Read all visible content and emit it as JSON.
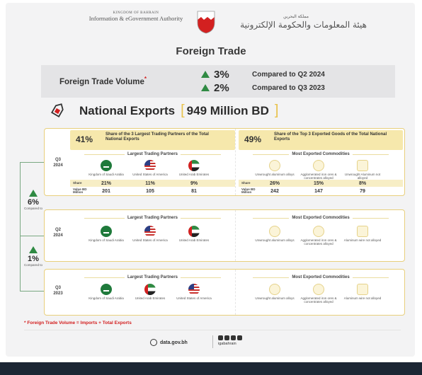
{
  "header": {
    "kingdom": "KINGDOM OF BAHRAIN",
    "authority_en": "Information & eGovernment Authority",
    "authority_ar_small": "مملكة البحرين",
    "authority_ar": "هيئة المعلومات والحكومة الإلكترونية"
  },
  "title": "Foreign Trade",
  "volume": {
    "label": "Foreign Trade Volume",
    "star": "*",
    "rows": [
      {
        "pct": "3%",
        "text": "Compared to Q2 2024"
      },
      {
        "pct": "2%",
        "text": "Compared to Q3 2023"
      }
    ]
  },
  "national": {
    "label": "National Exports",
    "value": "949 Million BD"
  },
  "blocks": [
    {
      "period_top": "Q3",
      "period_bottom": "2024",
      "left_share": "41%",
      "left_desc": "Share of the 3 Largest Trading Partners of the Total National Exports",
      "right_share": "49%",
      "right_desc": "Share of the Top 3 Exported Goods of the Total National Exports",
      "partners_title": "Largest Trading Partners",
      "partners": [
        "Kingdom of Saudi Arabia",
        "United States of America",
        "United Arab Emirates"
      ],
      "commodities_title": "Most Exported Commodities",
      "commodities": [
        "Unwrought aluminum alloys",
        "Agglomerated iron ores & concentrates alloyed",
        "Unwrought Aluminum not alloyed"
      ],
      "share_label": "Share",
      "value_label": "Value BD Million",
      "partner_share": [
        "21%",
        "11%",
        "9%"
      ],
      "partner_value": [
        "201",
        "105",
        "81"
      ],
      "commodity_share": [
        "26%",
        "15%",
        "8%"
      ],
      "commodity_value": [
        "242",
        "147",
        "79"
      ]
    },
    {
      "period_top": "Q2",
      "period_bottom": "2024",
      "partners_title": "Largest Trading Partners",
      "partners": [
        "Kingdom of Saudi Arabia",
        "United States of America",
        "United Arab Emirates"
      ],
      "commodities_title": "Most Exported Commodities",
      "commodities": [
        "Unwrought aluminum alloys",
        "Agglomerated iron ores & concentrates alloyed",
        "Aluminum wire not alloyed"
      ]
    },
    {
      "period_top": "Q3",
      "period_bottom": "2023",
      "partners_title": "Largest Trading Partners",
      "partners": [
        "Kingdom of Saudi Arabia",
        "United Arab Emirates",
        "United States of America"
      ],
      "commodities_title": "Most Exported Commodities",
      "commodities": [
        "Unwrought aluminum alloys",
        "Agglomerated iron ores & concentrates alloyed",
        "Aluminum wire not alloyed"
      ]
    }
  ],
  "comparisons": [
    {
      "pct": "6%",
      "text": "Compared to"
    },
    {
      "pct": "1%",
      "text": "Compared to"
    }
  ],
  "footnote": "* Foreign Trade Volume = Imports + Total Exports",
  "footer": {
    "website": "data.gov.bh",
    "handle": "igabahrain"
  },
  "colors": {
    "accent_green": "#2f8a43",
    "gold": "#e8c24a",
    "note_red": "#d32020"
  }
}
